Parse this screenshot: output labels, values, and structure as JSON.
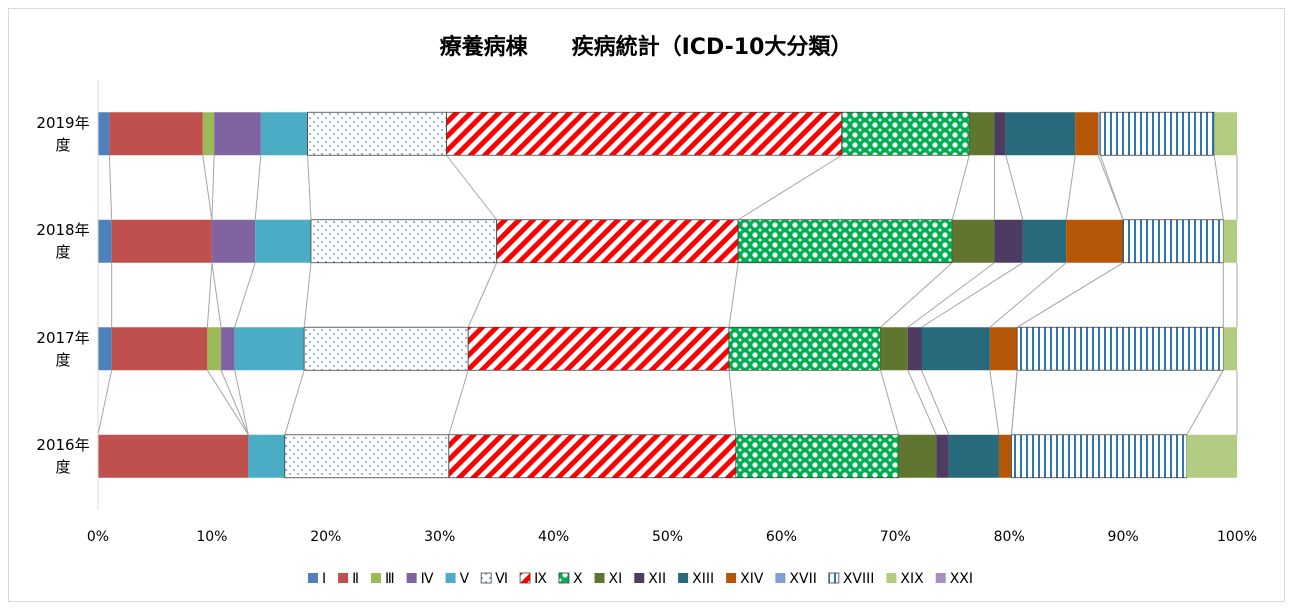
{
  "chart_data": {
    "type": "stacked-bar-100",
    "orientation": "horizontal",
    "title": "療養病棟　　疾病統計（ICD-10大分類）",
    "categories": [
      "2019年度",
      "2018年度",
      "2017年度",
      "2016年度"
    ],
    "series": [
      {
        "name": "Ⅰ",
        "color": "#4f81bd",
        "values": [
          1.0,
          1.2,
          1.2,
          0
        ]
      },
      {
        "name": "Ⅱ",
        "color": "#c0504d",
        "values": [
          8.2,
          8.8,
          8.4,
          13.2
        ]
      },
      {
        "name": "Ⅲ",
        "color": "#9bbb59",
        "values": [
          1.0,
          0,
          1.2,
          0
        ]
      },
      {
        "name": "Ⅳ",
        "color": "#8064a2",
        "values": [
          4.1,
          3.8,
          1.2,
          0
        ]
      },
      {
        "name": "Ⅴ",
        "color": "#4bacc6",
        "values": [
          4.1,
          4.9,
          6.1,
          3.2
        ]
      },
      {
        "name": "Ⅵ",
        "color": "#4f81bd",
        "pattern": "dots",
        "values": [
          12.2,
          16.3,
          14.4,
          14.4
        ]
      },
      {
        "name": "Ⅸ",
        "color": "#ff0000",
        "pattern": "diagonal",
        "values": [
          34.7,
          21.2,
          22.9,
          25.2
        ]
      },
      {
        "name": "Ⅹ",
        "color": "#00b050",
        "pattern": "circles",
        "values": [
          11.2,
          18.8,
          13.3,
          14.3
        ]
      },
      {
        "name": "XI",
        "color": "#5f7530",
        "values": [
          2.2,
          3.7,
          2.4,
          3.3
        ]
      },
      {
        "name": "XII",
        "color": "#4d3b62",
        "values": [
          1.0,
          2.5,
          1.2,
          1.1
        ]
      },
      {
        "name": "XIII",
        "color": "#276a7c",
        "values": [
          6.1,
          3.8,
          6.0,
          4.4
        ]
      },
      {
        "name": "XIV",
        "color": "#b65708",
        "values": [
          2.0,
          5.0,
          2.4,
          1.1
        ]
      },
      {
        "name": "XVII",
        "color": "#7f9fcf",
        "values": [
          0.2,
          0,
          0,
          0
        ]
      },
      {
        "name": "XVIII",
        "color": "#2e75b6",
        "pattern": "vertical",
        "values": [
          10.0,
          8.8,
          18.1,
          15.4
        ]
      },
      {
        "name": "XIX",
        "color": "#b3cc82",
        "values": [
          2.0,
          1.2,
          1.2,
          4.4
        ]
      },
      {
        "name": "XXI",
        "color": "#a58fc0",
        "values": [
          0,
          0,
          0,
          0
        ]
      }
    ],
    "xlim": [
      0,
      100
    ],
    "xticks": [
      {
        "value": 0,
        "label": "0%"
      },
      {
        "value": 10,
        "label": "10%"
      },
      {
        "value": 20,
        "label": "20%"
      },
      {
        "value": 30,
        "label": "30%"
      },
      {
        "value": 40,
        "label": "40%"
      },
      {
        "value": 50,
        "label": "50%"
      },
      {
        "value": 60,
        "label": "60%"
      },
      {
        "value": 70,
        "label": "70%"
      },
      {
        "value": 80,
        "label": "80%"
      },
      {
        "value": 90,
        "label": "90%"
      },
      {
        "value": 100,
        "label": "100%"
      }
    ],
    "grid": false,
    "series_lines": true,
    "legend": "bottom"
  }
}
